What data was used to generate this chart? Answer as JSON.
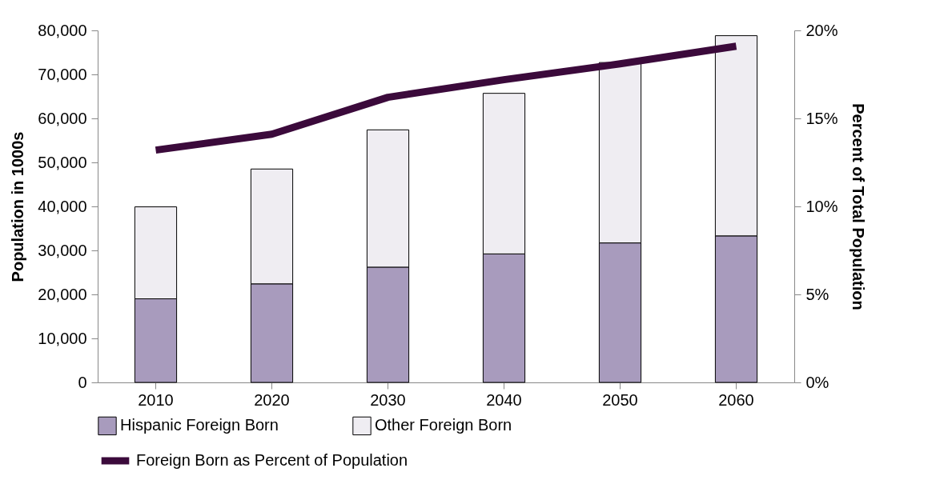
{
  "chart_data": {
    "type": "bar",
    "stacked": true,
    "categories": [
      "2010",
      "2020",
      "2030",
      "2040",
      "2050",
      "2060"
    ],
    "series": [
      {
        "name": "Hispanic Foreign Born",
        "type": "bar",
        "color": "#a89bbd",
        "values": [
          19000,
          22400,
          26200,
          29200,
          31700,
          33300
        ]
      },
      {
        "name": "Other Foreign Born",
        "type": "bar",
        "color": "#efedf2",
        "values": [
          20900,
          26100,
          31200,
          36500,
          41000,
          45500
        ]
      },
      {
        "name": "Foreign Born as Percent of Population",
        "type": "line",
        "axis": "y2",
        "color": "#3b0a3b",
        "values": [
          13.2,
          14.1,
          16.2,
          17.2,
          18.1,
          19.1
        ]
      }
    ],
    "ylabel": "Population in 1000s",
    "y2label": "Percent of Total Population",
    "ylim": [
      0,
      80000
    ],
    "yticks": [
      0,
      {
        "value": 10000,
        "label": "10,000"
      },
      {
        "value": 20000,
        "label": "20,000"
      },
      {
        "value": 30000,
        "label": "30,000"
      },
      {
        "value": 40000,
        "label": "40,000"
      },
      {
        "value": 50000,
        "label": "50,000"
      },
      {
        "value": 60000,
        "label": "60,000"
      },
      {
        "value": 70000,
        "label": "70,000"
      },
      {
        "value": 80000,
        "label": "80,000"
      }
    ],
    "y2lim": [
      0,
      20
    ],
    "y2ticks": [
      {
        "value": 0,
        "label": "0%"
      },
      {
        "value": 5,
        "label": "5%"
      },
      {
        "value": 10,
        "label": "10%"
      },
      {
        "value": 15,
        "label": "15%"
      },
      {
        "value": 20,
        "label": "20%"
      }
    ],
    "grid": false,
    "legend": "bottom"
  }
}
